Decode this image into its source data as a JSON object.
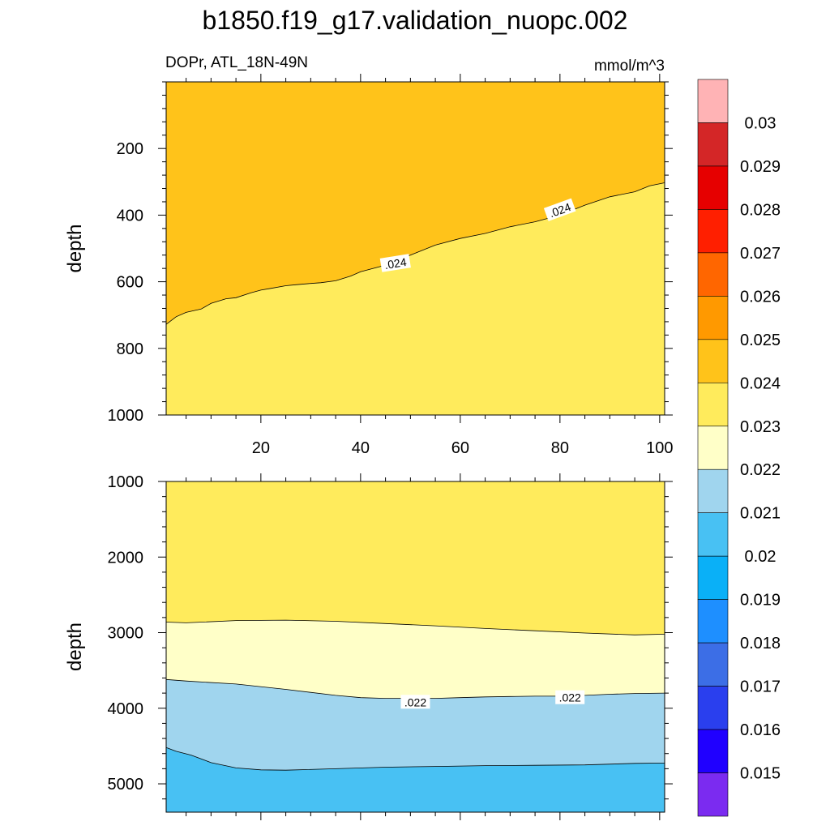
{
  "title": "b1850.f19_g17.validation_nuopc.002",
  "chart_data": [
    {
      "type": "contour",
      "panel": "upper",
      "subtitle_left": "DOPr, ATL_18N-49N",
      "subtitle_right": "mmol/m^3",
      "ylabel": "depth",
      "xlim": [
        1,
        101
      ],
      "ylim": [
        0,
        1000
      ],
      "y_inverted": true,
      "x_ticks": [
        20,
        40,
        60,
        80,
        100
      ],
      "x_tick_labels": [
        "20",
        "40",
        "60",
        "80",
        "100"
      ],
      "y_ticks": [
        200,
        400,
        600,
        800,
        1000
      ],
      "y_tick_labels": [
        "200",
        "400",
        "600",
        "800",
        "1000"
      ],
      "regions": [
        {
          "range": "0.024-0.025",
          "color": "#FFC31A",
          "position": "above"
        },
        {
          "range": "0.023-0.024",
          "color": "#FFEB5C",
          "position": "below"
        }
      ],
      "contour_lines": [
        {
          "level": 0.024,
          "x": [
            1,
            3,
            5,
            8,
            10,
            13,
            15,
            18,
            20,
            22,
            25,
            27,
            30,
            32,
            35,
            38,
            40,
            45,
            50,
            55,
            60,
            65,
            70,
            75,
            80,
            85,
            90,
            95,
            98,
            101
          ],
          "depth": [
            728,
            705,
            692,
            682,
            665,
            651,
            648,
            633,
            625,
            620,
            612,
            609,
            605,
            603,
            597,
            583,
            570,
            550,
            520,
            490,
            470,
            455,
            435,
            420,
            400,
            370,
            345,
            330,
            312,
            303
          ]
        }
      ],
      "contour_labels": [
        {
          "text": ".024",
          "x": 47,
          "depth": 545,
          "angle": -9
        },
        {
          "text": ".024",
          "x": 80,
          "depth": 385,
          "angle": -20
        }
      ]
    },
    {
      "type": "contour",
      "panel": "lower",
      "ylabel": "depth",
      "xlim": [
        1,
        101
      ],
      "ylim": [
        1000,
        5375
      ],
      "y_inverted": true,
      "x_ticks": [
        20,
        40,
        60,
        80,
        100
      ],
      "y_ticks": [
        1000,
        2000,
        3000,
        4000,
        5000
      ],
      "y_tick_labels": [
        "1000",
        "2000",
        "3000",
        "4000",
        "5000"
      ],
      "regions": [
        {
          "range": "0.023-0.024",
          "color": "#FFEB5C"
        },
        {
          "range": "0.022-0.023",
          "color": "#FFFFC8"
        },
        {
          "range": "0.021-0.022",
          "color": "#A0D5EE"
        },
        {
          "range": "0.020-0.021",
          "color": "#48C1F3"
        }
      ],
      "contour_lines": [
        {
          "level": 0.023,
          "x": [
            1,
            5,
            15,
            25,
            35,
            45,
            55,
            65,
            75,
            85,
            95,
            101
          ],
          "depth": [
            2860,
            2870,
            2840,
            2835,
            2850,
            2880,
            2910,
            2945,
            2975,
            3005,
            3030,
            3020
          ]
        },
        {
          "level": 0.022,
          "x": [
            1,
            5,
            15,
            25,
            35,
            40,
            45,
            50,
            55,
            60,
            65,
            70,
            75,
            80,
            85,
            90,
            95,
            101
          ],
          "depth": [
            3620,
            3640,
            3680,
            3750,
            3830,
            3860,
            3870,
            3870,
            3870,
            3860,
            3850,
            3845,
            3840,
            3840,
            3830,
            3815,
            3805,
            3800
          ]
        },
        {
          "level": 0.021,
          "x": [
            1,
            3,
            6,
            10,
            15,
            20,
            25,
            35,
            45,
            55,
            65,
            75,
            85,
            95,
            101
          ],
          "depth": [
            4520,
            4570,
            4620,
            4720,
            4790,
            4815,
            4820,
            4800,
            4780,
            4770,
            4760,
            4755,
            4750,
            4730,
            4725
          ]
        }
      ],
      "contour_labels": [
        {
          "text": ".022",
          "x": 51,
          "depth": 3920,
          "angle": 0
        },
        {
          "text": ".022",
          "x": 82,
          "depth": 3860,
          "angle": 0
        }
      ]
    }
  ],
  "colorbar": {
    "colors": [
      "#FFB3B5",
      "#D42627",
      "#E60000",
      "#FF1F00",
      "#FF6600",
      "#FF9900",
      "#FFC31A",
      "#FFEB5C",
      "#FFFFC8",
      "#A0D5EE",
      "#48C1F3",
      "#0AB0F7",
      "#1E8FFF",
      "#3C6EE6",
      "#2A3FEE",
      "#2000FF",
      "#7B2BF0"
    ],
    "labels": [
      "0.03",
      "0.029",
      "0.028",
      "0.027",
      "0.026",
      "0.025",
      "0.024",
      "0.023",
      "0.022",
      "0.021",
      "0.02",
      "0.019",
      "0.018",
      "0.017",
      "0.016",
      "0.015"
    ]
  }
}
